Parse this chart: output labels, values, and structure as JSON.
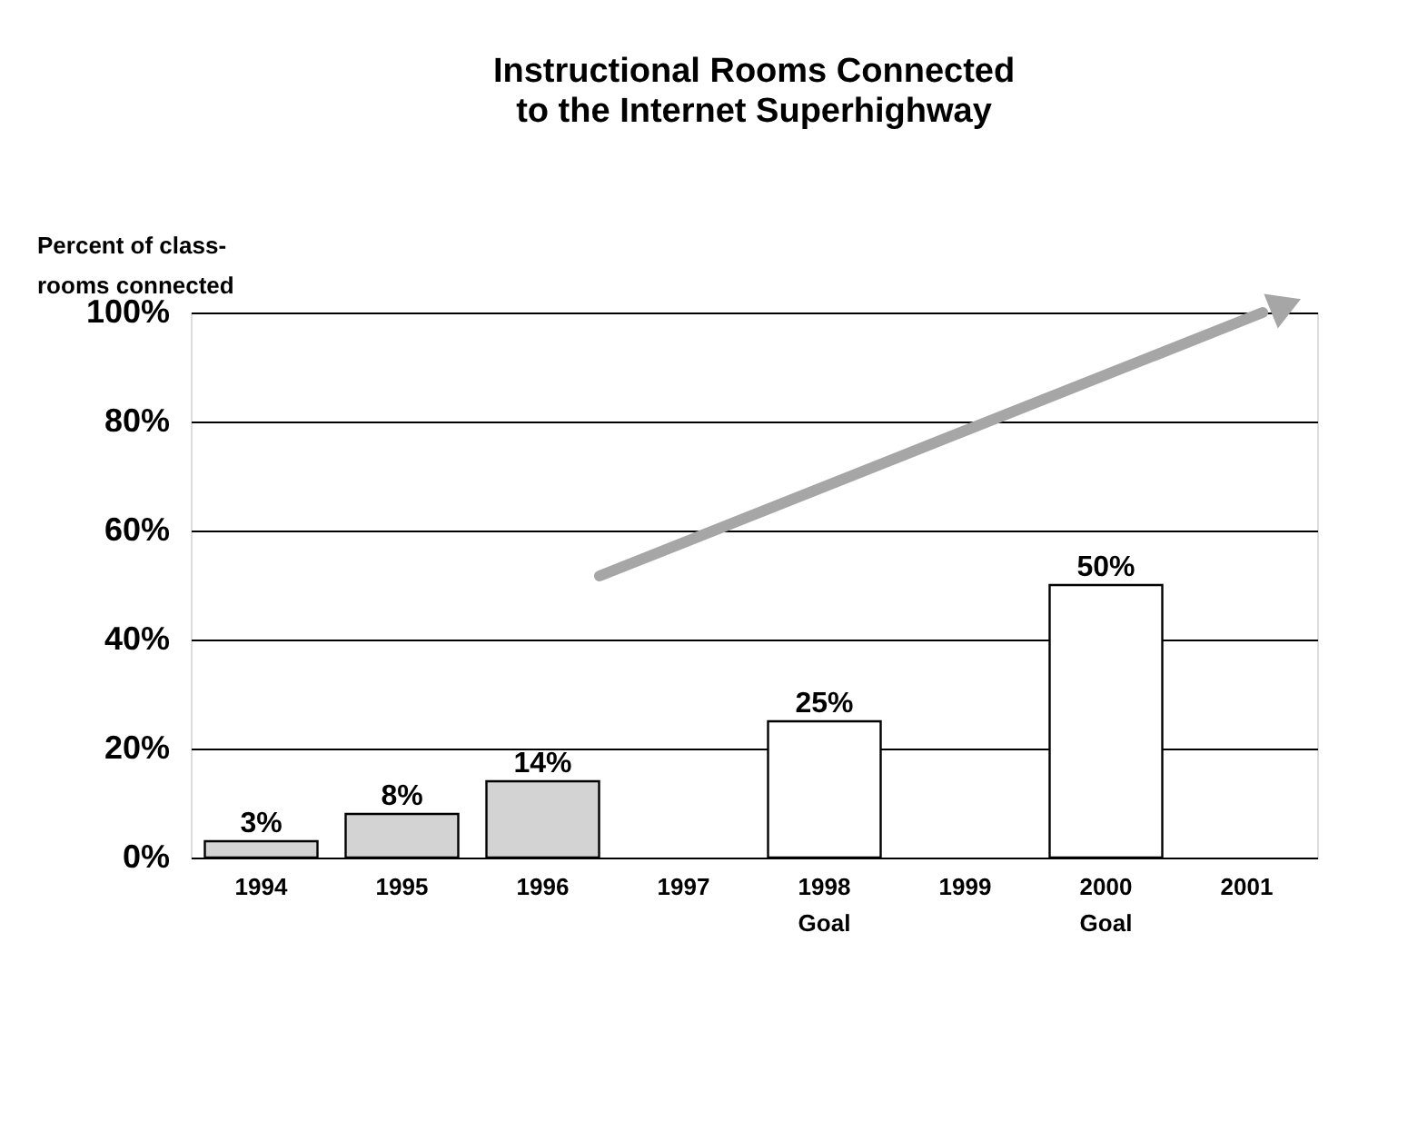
{
  "chart_data": {
    "type": "bar",
    "title": "Instructional Rooms Connected\nto the Internet Superhighway",
    "ylabel": "Percent of class-\nrooms connected",
    "categories": [
      "1994",
      "1995",
      "1996",
      "1997",
      "1998\nGoal",
      "1999",
      "2000\nGoal",
      "2001"
    ],
    "values": [
      3,
      8,
      14,
      null,
      25,
      null,
      50,
      null
    ],
    "colors": [
      "#d3d3d3",
      "#d3d3d3",
      "#d3d3d3",
      "#ffffff",
      "#ffffff",
      "#ffffff",
      "#ffffff",
      "#ffffff"
    ],
    "value_labels": [
      "3%",
      "8%",
      "14%",
      null,
      "25%",
      null,
      "50%",
      null
    ],
    "ylim": [
      0,
      100
    ],
    "yticks": [
      {
        "value": 0,
        "label": "0%"
      },
      {
        "value": 20,
        "label": "20%"
      },
      {
        "value": 40,
        "label": "40%"
      },
      {
        "value": 60,
        "label": "60%"
      },
      {
        "value": 80,
        "label": "80%"
      },
      {
        "value": 100,
        "label": "100%"
      }
    ],
    "grid": "y",
    "legend": false
  }
}
